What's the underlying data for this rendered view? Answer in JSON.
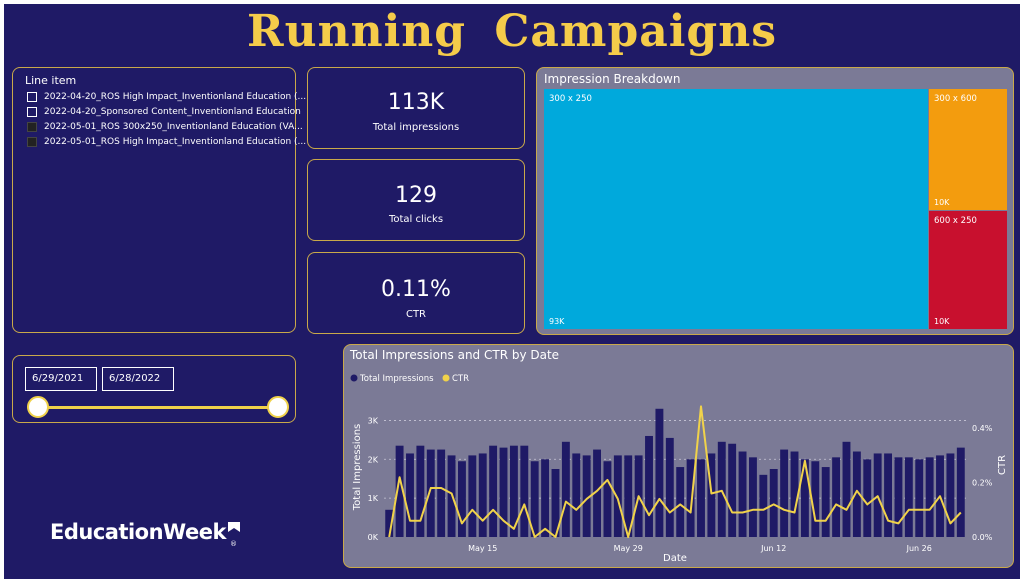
{
  "title": "Running Campaigns",
  "line_item": {
    "header": "Line item",
    "items": [
      {
        "label": "2022-04-20_ROS High Impact_Inventionland Education (...",
        "checked": false
      },
      {
        "label": "2022-04-20_Sponsored Content_Inventionland Education",
        "checked": false
      },
      {
        "label": "2022-05-01_ROS 300x250_Inventionland Education (VA...",
        "checked": true
      },
      {
        "label": "2022-05-01_ROS High Impact_Inventionland Education (...",
        "checked": true
      }
    ]
  },
  "kpis": [
    {
      "value": "113K",
      "label": "Total impressions"
    },
    {
      "value": "129",
      "label": "Total clicks"
    },
    {
      "value": "0.11%",
      "label": "CTR"
    }
  ],
  "date_range": {
    "start": "6/29/2021",
    "end": "6/28/2022",
    "start_pos": 0.0,
    "end_pos": 1.0
  },
  "impression_breakdown": {
    "title": "Impression Breakdown",
    "tiles": [
      {
        "label": "300 x 250",
        "value": "93K",
        "color": "#00a9dc"
      },
      {
        "label": "300 x 600",
        "value": "10K",
        "color": "#f39c0e"
      },
      {
        "label": "600 x 250",
        "value": "10K",
        "color": "#c8102e"
      }
    ]
  },
  "brand": {
    "name": "EducationWeek",
    "reg": "®"
  },
  "colors": {
    "background": "#1f1a66",
    "accent": "#f5cc4a",
    "panel_gray": "#7b7a96",
    "bar": "#1f1a66",
    "line": "#f0d24a"
  },
  "chart_data": {
    "type": "bar",
    "title": "Total Impressions and CTR by Date",
    "xlabel": "Date",
    "ylabel": "Total Impressions",
    "y2label": "CTR",
    "ylim": [
      0,
      3500
    ],
    "y2lim": [
      0,
      0.5
    ],
    "yticks": [
      "0K",
      "1K",
      "2K",
      "3K"
    ],
    "y2ticks": [
      "0.0%",
      "0.2%",
      "0.4%"
    ],
    "xticks": [
      "May 15",
      "May 29",
      "Jun 12",
      "Jun 26"
    ],
    "xtick_index": [
      9,
      23,
      37,
      51
    ],
    "legend": {
      "position": "top-left"
    },
    "series": [
      {
        "name": "Total Impressions",
        "kind": "bar",
        "color": "#1f1a66",
        "values": [
          700,
          2350,
          2150,
          2350,
          2250,
          2250,
          2100,
          1950,
          2100,
          2150,
          2350,
          2300,
          2350,
          2350,
          1950,
          2000,
          1750,
          2450,
          2150,
          2100,
          2250,
          1950,
          2100,
          2100,
          2100,
          2600,
          3300,
          2550,
          1800,
          2000,
          2000,
          2150,
          2450,
          2400,
          2200,
          2050,
          1600,
          1750,
          2250,
          2200,
          2000,
          1950,
          1800,
          2050,
          2450,
          2200,
          2000,
          2150,
          2150,
          2050,
          2050,
          2000,
          2050,
          2100,
          2150,
          2300
        ]
      },
      {
        "name": "CTR",
        "kind": "line",
        "color": "#f0d24a",
        "values": [
          0.0,
          0.22,
          0.06,
          0.06,
          0.18,
          0.18,
          0.16,
          0.05,
          0.1,
          0.06,
          0.1,
          0.06,
          0.03,
          0.12,
          0.0,
          0.03,
          0.0,
          0.13,
          0.1,
          0.14,
          0.17,
          0.21,
          0.14,
          0.0,
          0.15,
          0.08,
          0.14,
          0.09,
          0.12,
          0.09,
          0.48,
          0.16,
          0.17,
          0.09,
          0.09,
          0.1,
          0.1,
          0.12,
          0.1,
          0.09,
          0.28,
          0.06,
          0.06,
          0.12,
          0.1,
          0.17,
          0.12,
          0.15,
          0.06,
          0.05,
          0.1,
          0.1,
          0.1,
          0.15,
          0.05,
          0.09
        ]
      }
    ]
  }
}
